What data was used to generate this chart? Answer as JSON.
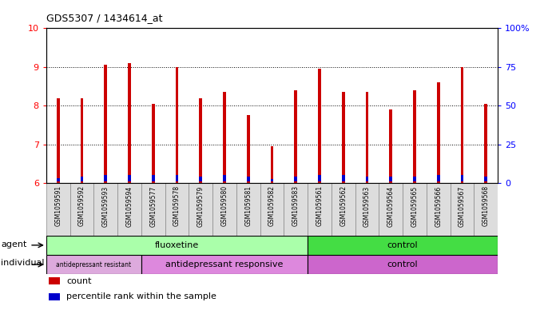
{
  "title": "GDS5307 / 1434614_at",
  "samples": [
    "GSM1059591",
    "GSM1059592",
    "GSM1059593",
    "GSM1059594",
    "GSM1059577",
    "GSM1059578",
    "GSM1059579",
    "GSM1059580",
    "GSM1059581",
    "GSM1059582",
    "GSM1059583",
    "GSM1059561",
    "GSM1059562",
    "GSM1059563",
    "GSM1059564",
    "GSM1059565",
    "GSM1059566",
    "GSM1059567",
    "GSM1059568"
  ],
  "red_values": [
    8.2,
    8.2,
    9.05,
    9.1,
    8.05,
    9.0,
    8.2,
    8.35,
    7.75,
    6.95,
    8.4,
    8.95,
    8.35,
    8.35,
    7.9,
    8.4,
    8.6,
    9.0,
    8.05
  ],
  "blue_values": [
    0.08,
    0.13,
    0.16,
    0.16,
    0.16,
    0.16,
    0.12,
    0.16,
    0.12,
    0.07,
    0.12,
    0.16,
    0.16,
    0.12,
    0.12,
    0.12,
    0.16,
    0.16,
    0.12
  ],
  "ylim_left": [
    6,
    10
  ],
  "ylim_right": [
    0,
    100
  ],
  "yticks_left": [
    6,
    7,
    8,
    9,
    10
  ],
  "yticks_right": [
    0,
    25,
    50,
    75,
    100
  ],
  "ytick_labels_right": [
    "0",
    "25",
    "50",
    "75",
    "100%"
  ],
  "bar_color_red": "#cc0000",
  "bar_color_blue": "#0000cc",
  "agent_groups": [
    {
      "label": "fluoxetine",
      "start": 0,
      "end": 11,
      "color": "#aaffaa"
    },
    {
      "label": "control",
      "start": 11,
      "end": 19,
      "color": "#44dd44"
    }
  ],
  "individual_groups": [
    {
      "label": "antidepressant resistant",
      "start": 0,
      "end": 4,
      "color": "#ddaadd"
    },
    {
      "label": "antidepressant responsive",
      "start": 4,
      "end": 11,
      "color": "#dd88dd"
    },
    {
      "label": "control",
      "start": 11,
      "end": 19,
      "color": "#cc66cc"
    }
  ],
  "legend_items": [
    {
      "label": "count",
      "color": "#cc0000"
    },
    {
      "label": "percentile rank within the sample",
      "color": "#0000cc"
    }
  ],
  "base_value": 6.0,
  "bar_width": 0.12
}
